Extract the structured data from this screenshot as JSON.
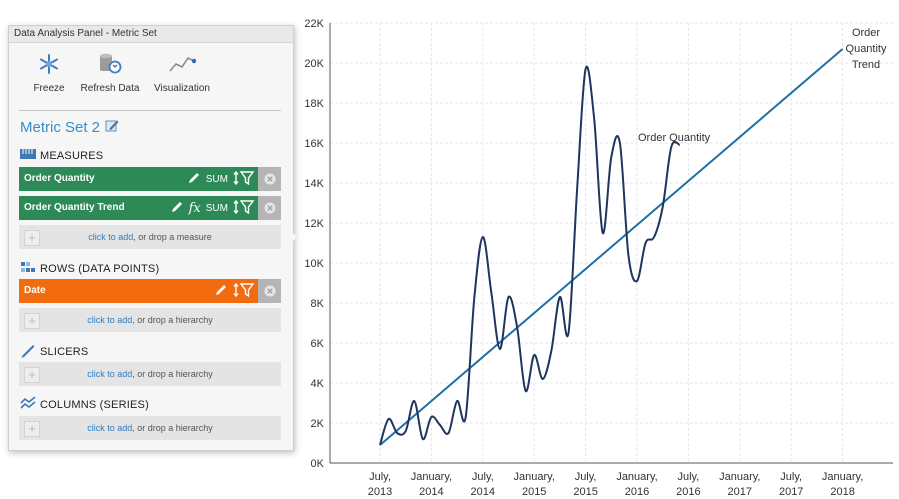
{
  "panel": {
    "title": "Data Analysis Panel - Metric Set",
    "toolbar": {
      "freeze_label": "Freeze",
      "refresh_label": "Refresh Data",
      "visualization_label": "Visualization"
    },
    "metric_set_title": "Metric Set 2",
    "sections": {
      "measures": "MEASURES",
      "rows": "ROWS (DATA POINTS)",
      "slicers": "SLICERS",
      "columns": "COLUMNS (SERIES)"
    },
    "measures": [
      {
        "name": "Order Quantity",
        "agg": "SUM"
      },
      {
        "name": "Order Quantity Trend",
        "agg": "SUM",
        "fx": "fx"
      }
    ],
    "rows": [
      {
        "name": "Date"
      }
    ],
    "dropzones": {
      "link": "click to add",
      "measure_rest": ", or drop a measure",
      "hierarchy_rest": ", or drop a hierarchy"
    },
    "colors": {
      "measure": "#2d8a57",
      "row": "#f26b0f",
      "title": "#3c8dc4"
    }
  },
  "chart_data": {
    "type": "line",
    "title": "",
    "xlabel": "",
    "ylabel": "",
    "y_ticks": [
      "0K",
      "2K",
      "4K",
      "6K",
      "8K",
      "10K",
      "12K",
      "14K",
      "16K",
      "18K",
      "20K",
      "22K"
    ],
    "ylim": [
      0,
      22000
    ],
    "x_ticks": [
      [
        "July,",
        "2013"
      ],
      [
        "January,",
        "2014"
      ],
      [
        "July,",
        "2014"
      ],
      [
        "January,",
        "2015"
      ],
      [
        "July,",
        "2015"
      ],
      [
        "January,",
        "2016"
      ],
      [
        "July,",
        "2016"
      ],
      [
        "January,",
        "2017"
      ],
      [
        "July,",
        "2017"
      ],
      [
        "January,",
        "2018"
      ]
    ],
    "x_tick_dates": [
      "2013-07",
      "2014-01",
      "2014-07",
      "2015-01",
      "2015-07",
      "2016-01",
      "2016-07",
      "2017-01",
      "2017-07",
      "2018-01"
    ],
    "grid": true,
    "series": [
      {
        "name": "Order Quantity",
        "color": "#1e3560",
        "x": [
          "2013-07",
          "2013-08",
          "2013-09",
          "2013-10",
          "2013-11",
          "2013-12",
          "2014-01",
          "2014-02",
          "2014-03",
          "2014-04",
          "2014-05",
          "2014-06",
          "2014-07",
          "2014-08",
          "2014-09",
          "2014-10",
          "2014-11",
          "2014-12",
          "2015-01",
          "2015-02",
          "2015-03",
          "2015-04",
          "2015-05",
          "2015-06",
          "2015-07",
          "2015-08",
          "2015-09",
          "2015-10",
          "2015-11",
          "2015-12",
          "2016-01",
          "2016-02",
          "2016-03",
          "2016-04",
          "2016-05",
          "2016-06"
        ],
        "y": [
          900,
          2200,
          1500,
          1600,
          3100,
          1200,
          2300,
          1900,
          1500,
          3100,
          2300,
          8200,
          11300,
          8500,
          5700,
          8300,
          6800,
          3600,
          5400,
          4200,
          5600,
          8300,
          6500,
          13600,
          19700,
          17200,
          11500,
          15300,
          16000,
          10400,
          9100,
          11000,
          11300,
          12800,
          15800,
          15900
        ]
      },
      {
        "name": "Order Quantity Trend",
        "color": "#1f6fa7",
        "x": [
          "2013-07",
          "2018-01"
        ],
        "y": [
          900,
          20700
        ]
      }
    ]
  }
}
